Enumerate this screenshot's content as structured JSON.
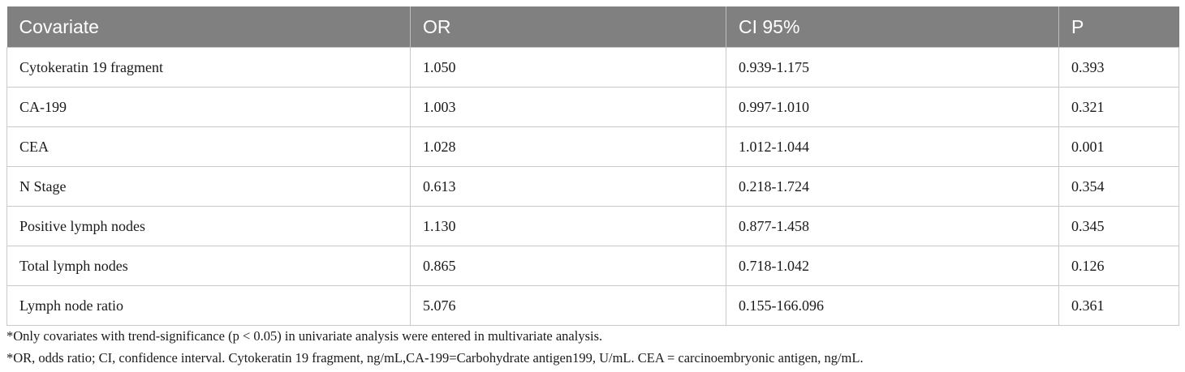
{
  "table": {
    "headers": [
      "Covariate",
      "OR",
      "CI 95%",
      "P"
    ],
    "rows": [
      [
        "Cytokeratin 19 fragment",
        "1.050",
        "0.939-1.175",
        "0.393"
      ],
      [
        "CA-199",
        "1.003",
        "0.997-1.010",
        "0.321"
      ],
      [
        "CEA",
        "1.028",
        "1.012-1.044",
        "0.001"
      ],
      [
        "N Stage",
        "0.613",
        "0.218-1.724",
        "0.354"
      ],
      [
        "Positive lymph nodes",
        "1.130",
        "0.877-1.458",
        "0.345"
      ],
      [
        "Total lymph nodes",
        "0.865",
        "0.718-1.042",
        "0.126"
      ],
      [
        "Lymph node ratio",
        "5.076",
        "0.155-166.096",
        "0.361"
      ]
    ]
  },
  "footnotes": [
    "*Only covariates with trend-significance (p < 0.05) in univariate analysis were entered in multivariate analysis.",
    "*OR, odds ratio; CI, confidence interval. Cytokeratin 19 fragment, ng/mL,CA-199=Carbohydrate antigen199, U/mL. CEA = carcinoembryonic antigen, ng/mL."
  ],
  "colors": {
    "header_bg": "#808080",
    "header_text": "#ffffff",
    "border": "#c9c9c9"
  }
}
